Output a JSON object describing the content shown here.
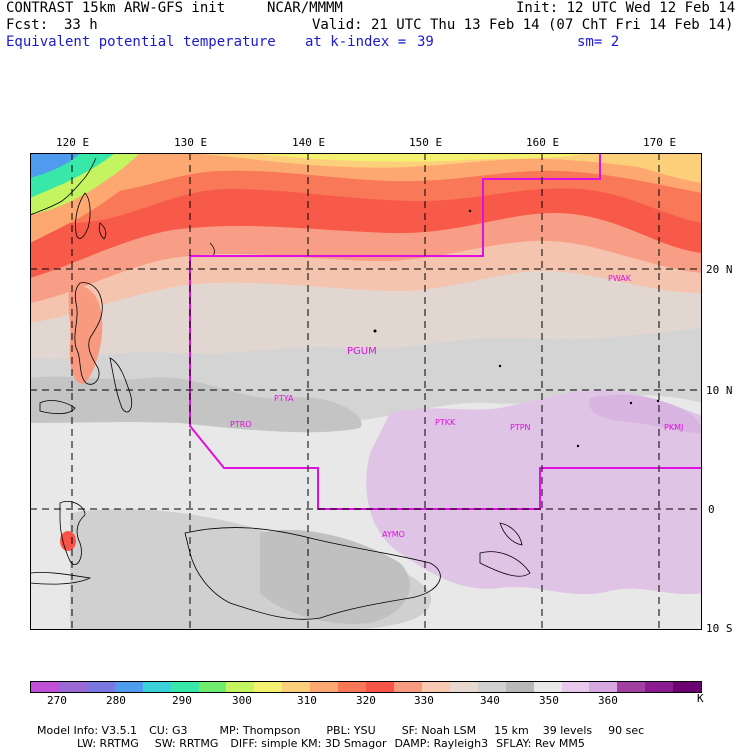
{
  "header": {
    "model": "CONTRAST 15km ARW-GFS init",
    "org": "NCAR/MMMM",
    "init": "Init: 12 UTC Wed 12 Feb 14",
    "fcst_label": "Fcst:",
    "fcst_value": "33 h",
    "valid": "Valid: 21 UTC Thu 13 Feb 14 (07 ChT Fri 14 Feb 14)",
    "field": "Equivalent potential temperature",
    "level": "at k-index =",
    "level_value": "39",
    "smooth": "sm= 2"
  },
  "map": {
    "lon_labels": [
      "120 E",
      "130 E",
      "140 E",
      "150 E",
      "160 E",
      "170 E"
    ],
    "lat_labels": [
      "20 N",
      "10 N",
      "0",
      "10 S"
    ],
    "stations": [
      "PWAK",
      "PGUM",
      "PTYA",
      "PTRO",
      "PTKK",
      "PTPN",
      "PKMJ",
      "AYMO"
    ]
  },
  "colorbar": {
    "colors": [
      "#c050d8",
      "#9a6ad4",
      "#7878e0",
      "#4f9bf0",
      "#3ad2d8",
      "#38e8a8",
      "#70ec6c",
      "#c4f460",
      "#f4f070",
      "#fcd07a",
      "#fca870",
      "#f87858",
      "#f85448",
      "#f89a80",
      "#f8c8b0",
      "#e8d8d0",
      "#d0d0d0",
      "#b8b8b8",
      "#e8e8e8",
      "#e8c8ec",
      "#d8a8e0",
      "#a040a0",
      "#8c1a90",
      "#6c0070"
    ],
    "ticks": [
      "270",
      "280",
      "290",
      "300",
      "310",
      "320",
      "330",
      "340",
      "350",
      "360"
    ],
    "units": "K"
  },
  "footer": {
    "line1": [
      "Model Info: V3.5.1",
      "CU: G3",
      "MP: Thompson",
      "PBL: YSU",
      "SF: Noah LSM",
      "15 km",
      "39 levels",
      "90 sec"
    ],
    "line2": [
      "LW: RRTMG",
      "SW: RRTMG",
      "DIFF: simple KM: 3D Smagor",
      "DAMP: Rayleigh3",
      "SFLAY: Rev MM5"
    ]
  }
}
